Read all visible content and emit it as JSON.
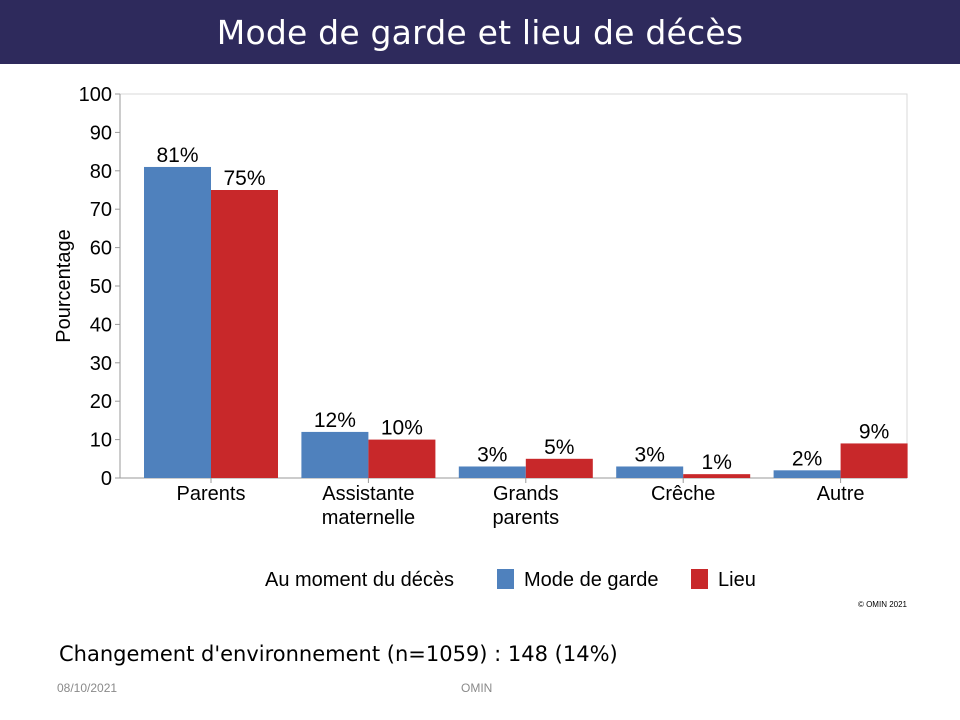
{
  "slide": {
    "title": "Mode de garde et lieu de décès",
    "caption": "Changement d'environnement (n=1059) : 148 (14%)",
    "footer_date": "08/10/2021",
    "footer_center": "OMIN"
  },
  "chart_data": {
    "type": "bar",
    "categories": [
      [
        "Parents"
      ],
      [
        "Assistante",
        "maternelle"
      ],
      [
        "Grands",
        "parents"
      ],
      [
        "Crêche"
      ],
      [
        "Autre"
      ]
    ],
    "series": [
      {
        "name": "Mode de garde",
        "values": [
          81,
          12,
          3,
          3,
          2
        ],
        "labels": [
          "81%",
          "12%",
          "3%",
          "3%",
          "2%"
        ],
        "color": "#4f81bd"
      },
      {
        "name": "Lieu",
        "values": [
          75,
          10,
          5,
          1,
          9
        ],
        "labels": [
          "75%",
          "10%",
          "5%",
          "1%",
          "9%"
        ],
        "color": "#c8282a"
      }
    ],
    "ylabel": "Pourcentage",
    "ylim": [
      0,
      100
    ],
    "yticks": [
      0,
      10,
      20,
      30,
      40,
      50,
      60,
      70,
      80,
      90,
      100
    ],
    "legend_title": "Au moment du décès",
    "legend_position": "bottom",
    "copyright": "© OMIN 2021",
    "grid": false
  }
}
